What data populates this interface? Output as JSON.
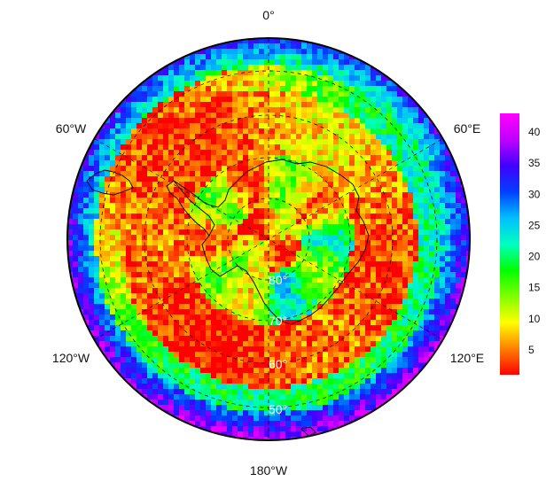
{
  "map": {
    "projection": "south-polar-stereographic",
    "longitude_labels": {
      "top": "0°",
      "left_upper": "60°W",
      "right_upper": "60°E",
      "left_lower": "120°W",
      "right_lower": "120°E",
      "bottom": "180°W"
    },
    "latitude_labels": [
      "80°",
      "70°",
      "60°",
      "50°"
    ],
    "colorbar": {
      "ticks": [
        "40",
        "35",
        "30",
        "25",
        "20",
        "15",
        "10",
        "5"
      ],
      "tick_values": [
        40,
        35,
        30,
        25,
        20,
        15,
        10,
        5
      ],
      "range": [
        1,
        43
      ],
      "colormap": [
        "#ff0000",
        "#ff8000",
        "#ffff00",
        "#80ff00",
        "#00ff00",
        "#00ffbf",
        "#00bfff",
        "#0040ff",
        "#4000ff",
        "#bf00ff",
        "#ff00ff"
      ]
    }
  }
}
